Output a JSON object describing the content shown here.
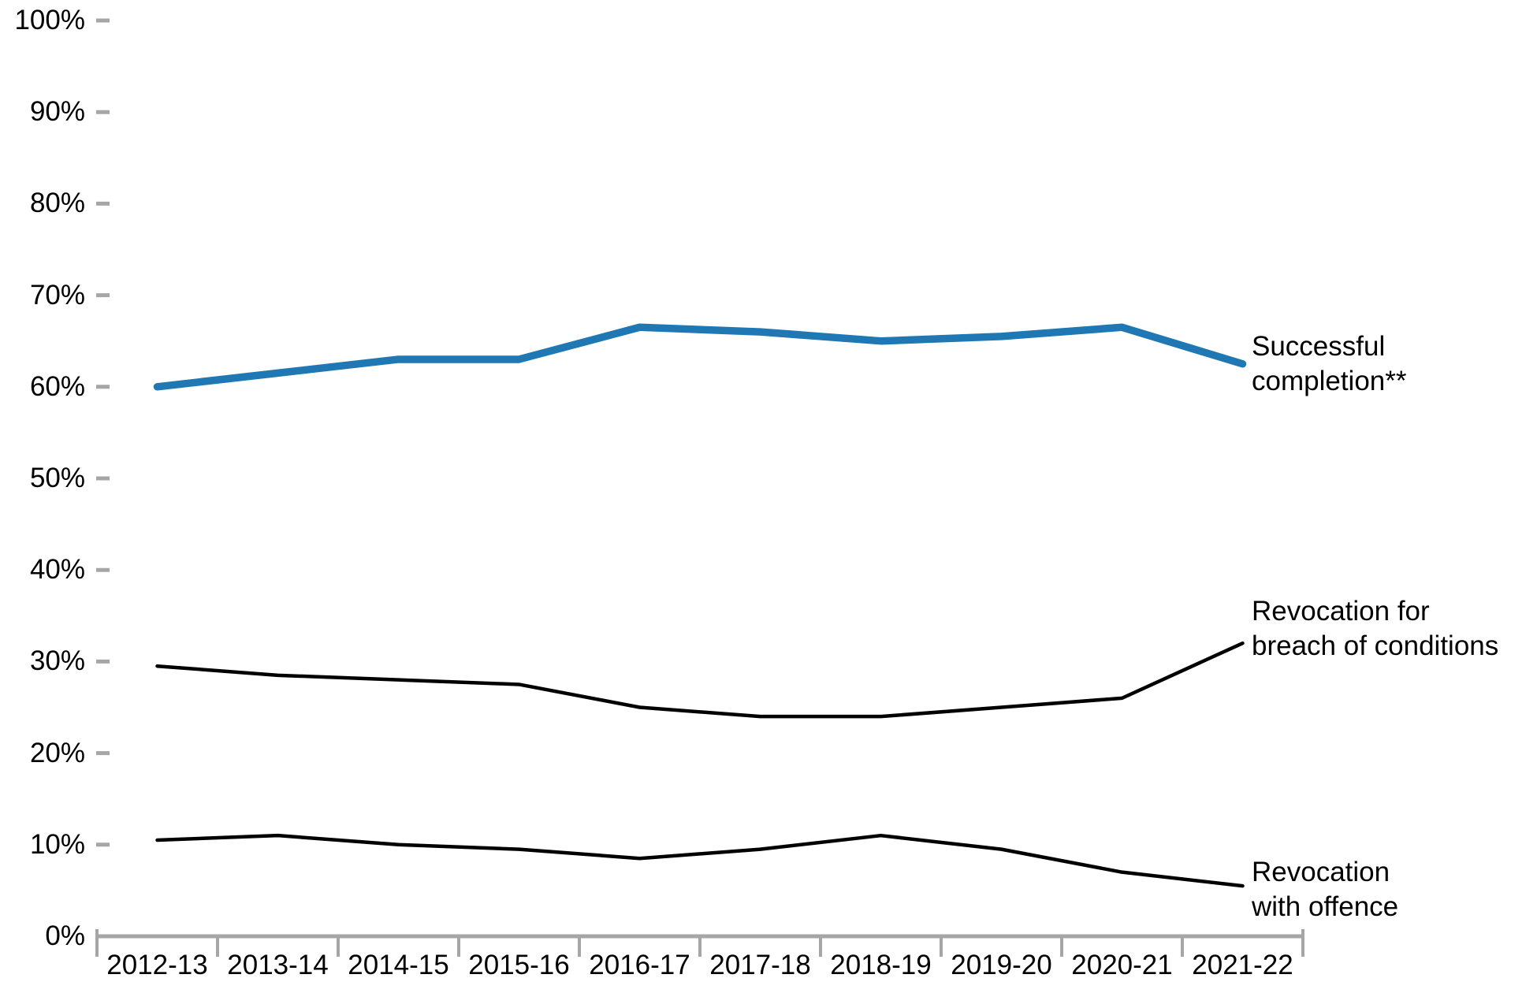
{
  "chart_data": {
    "type": "line",
    "title": "",
    "xlabel": "",
    "ylabel": "",
    "grid": false,
    "legend_position": "right-of-line-end",
    "categories": [
      "2012-13",
      "2013-14",
      "2014-15",
      "2015-16",
      "2016-17",
      "2017-18",
      "2018-19",
      "2019-20",
      "2020-21",
      "2021-22"
    ],
    "series": [
      {
        "name": "Successful completion**",
        "label_lines": [
          "Successful",
          "completion**"
        ],
        "color": "#1F77B4",
        "values": [
          60,
          61.5,
          63,
          63,
          66.5,
          66,
          65,
          65.5,
          66.5,
          62.5
        ]
      },
      {
        "name": "Revocation for breach of conditions",
        "label_lines": [
          "Revocation for",
          "breach of conditions"
        ],
        "color": "#000000",
        "values": [
          29.5,
          28.5,
          28,
          27.5,
          25,
          24,
          24,
          25,
          26,
          32
        ]
      },
      {
        "name": "Revocation with offence",
        "label_lines": [
          "Revocation",
          "with offence"
        ],
        "color": "#000000",
        "values": [
          10.5,
          11,
          10,
          9.5,
          8.5,
          9.5,
          11,
          9.5,
          7,
          5.5
        ]
      }
    ],
    "y_axis": {
      "min": 0,
      "max": 100,
      "step": 10,
      "tick_labels": [
        "0%",
        "10%",
        "20%",
        "30%",
        "40%",
        "50%",
        "60%",
        "70%",
        "80%",
        "90%",
        "100%"
      ]
    },
    "colors": {
      "axis_gray": "#A6A6A6",
      "text_black": "#000000",
      "line_blue": "#1F77B4",
      "line_black": "#000000"
    }
  }
}
